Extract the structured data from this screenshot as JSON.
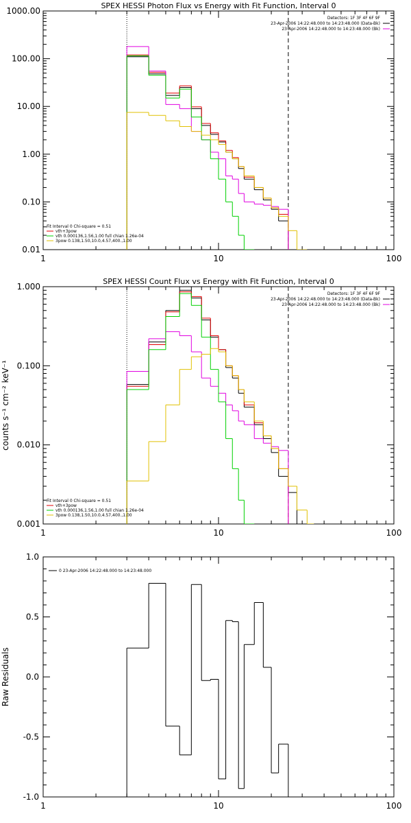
{
  "chart_data": [
    {
      "type": "line",
      "title": "SPEX HESSI Photon Flux vs Energy with Fit Function, Interval 0",
      "ylabel": "",
      "xscale": "log",
      "yscale": "log",
      "xlim": [
        1,
        100
      ],
      "ylim": [
        0.01,
        1000
      ],
      "x_tick_labels": [
        "1",
        "10",
        "100"
      ],
      "y_tick_labels": [
        "0.01",
        "0.10",
        "1.00",
        "10.00",
        "100.00",
        "1000.00"
      ],
      "vlines": [
        {
          "x": 3,
          "style": "dotted"
        },
        {
          "x": 25,
          "style": "dashed"
        }
      ],
      "legend_top_right": [
        "Detectors: 1F 3F 4F 6F 9F",
        "23-Apr-2006 14:22:48.000 to 14:23:48.000 (Data-Bk)",
        "23-Apr-2006 14:22:48.000 to 14:23:48.000 (Bk)"
      ],
      "legend_bottom_left": [
        "Fit Interval 0   Chi-square = 0.51",
        "vth+3pow",
        "vth 0.000136,1.56,1.00   full chian 1.26e-04",
        "3pow 0.138,1.50,10.0,4.57,400.,1.00"
      ],
      "edges": [
        3,
        4,
        5,
        6,
        7,
        8,
        9,
        10,
        11,
        12,
        13,
        14,
        16,
        18,
        20,
        22,
        25,
        28,
        32
      ],
      "series": [
        {
          "name": "Data-Bk",
          "color": "#000000",
          "values": [
            110,
            48,
            17,
            25,
            9,
            4,
            2.6,
            1.8,
            1.1,
            0.8,
            0.5,
            0.3,
            0.18,
            0.11,
            0.07,
            0.04,
            null,
            null
          ]
        },
        {
          "name": "vth+3pow",
          "color": "#e00000",
          "values": [
            120,
            52,
            19,
            27,
            9.8,
            4.4,
            2.8,
            1.9,
            1.2,
            0.85,
            0.55,
            0.33,
            0.2,
            0.12,
            0.075,
            0.055,
            null,
            null
          ]
        },
        {
          "name": "Bk",
          "color": "#e000e0",
          "values": [
            180,
            55,
            11,
            9,
            3,
            2,
            1.1,
            0.8,
            0.35,
            0.3,
            0.15,
            0.1,
            0.09,
            0.085,
            0.08,
            0.07,
            null,
            null
          ]
        },
        {
          "name": "vth",
          "color": "#00d000",
          "values": [
            115,
            45,
            15,
            23,
            6,
            2,
            0.8,
            0.3,
            0.1,
            0.05,
            0.02,
            0.01,
            null,
            null,
            null,
            null,
            null,
            null
          ]
        },
        {
          "name": "3pow",
          "color": "#e0c000",
          "values": [
            7.5,
            6.5,
            5,
            3.8,
            3,
            2.5,
            2,
            1.6,
            1.1,
            0.8,
            0.55,
            0.35,
            0.2,
            0.12,
            0.075,
            0.05,
            0.025,
            0.01
          ]
        }
      ]
    },
    {
      "type": "line",
      "title": "SPEX HESSI Count Flux vs Energy with Fit Function, Interval 0",
      "ylabel": "counts s⁻¹ cm⁻² keV⁻¹",
      "xscale": "log",
      "yscale": "log",
      "xlim": [
        1,
        100
      ],
      "ylim": [
        0.001,
        1
      ],
      "x_tick_labels": [
        "1",
        "10",
        "100"
      ],
      "y_tick_labels": [
        "0.001",
        "0.010",
        "0.100",
        "1.000"
      ],
      "vlines": [
        {
          "x": 3,
          "style": "dotted"
        },
        {
          "x": 25,
          "style": "dashed"
        }
      ],
      "legend_top_right": [
        "Detectors: 1F 3F 4F 6F 9F",
        "23-Apr-2006 14:22:48.000 to 14:23:48.000 (Data-Bk)",
        "23-Apr-2006 14:22:48.000 to 14:23:48.000 (Bk)"
      ],
      "legend_bottom_left": [
        "Fit Interval 0   Chi-square = 0.51",
        "vth+3pow",
        "vth 0.000136,1.56,1.00   full chian 1.26e-04",
        "3pow 0.138,1.50,10.0,4.57,400.,1.00"
      ],
      "edges": [
        3,
        4,
        5,
        6,
        7,
        8,
        9,
        10,
        11,
        12,
        13,
        14,
        16,
        18,
        20,
        22,
        25,
        28,
        32,
        35
      ],
      "series": [
        {
          "name": "Data-Bk",
          "color": "#000000",
          "values": [
            0.058,
            0.2,
            0.5,
            0.9,
            0.72,
            0.38,
            0.23,
            0.16,
            0.095,
            0.07,
            0.045,
            0.03,
            0.018,
            0.012,
            0.008,
            0.004,
            0.0025,
            null,
            null
          ]
        },
        {
          "name": "vth+3pow",
          "color": "#e00000",
          "values": [
            0.055,
            0.185,
            0.48,
            0.86,
            0.75,
            0.4,
            0.24,
            0.16,
            0.1,
            0.075,
            0.05,
            0.032,
            0.019,
            0.013,
            0.009,
            0.005,
            null,
            null,
            null
          ]
        },
        {
          "name": "Bk",
          "color": "#e000e0",
          "values": [
            0.085,
            0.22,
            0.27,
            0.24,
            0.15,
            0.07,
            0.055,
            0.045,
            0.032,
            0.027,
            0.02,
            0.018,
            0.012,
            0.0105,
            0.0095,
            0.0085,
            null,
            null,
            null
          ]
        },
        {
          "name": "vth",
          "color": "#00d000",
          "values": [
            0.05,
            0.16,
            0.42,
            0.82,
            0.58,
            0.23,
            0.09,
            0.035,
            0.012,
            0.005,
            0.002,
            0.001,
            null,
            null,
            null,
            null,
            null,
            null,
            null
          ]
        },
        {
          "name": "3pow",
          "color": "#e0c000",
          "values": [
            0.0035,
            0.011,
            0.032,
            0.09,
            0.13,
            0.14,
            0.165,
            0.15,
            0.1,
            0.075,
            0.05,
            0.035,
            0.02,
            0.013,
            0.009,
            0.005,
            0.003,
            0.0015,
            0.001
          ]
        }
      ]
    },
    {
      "type": "line",
      "title": "",
      "ylabel": "Raw Residuals",
      "xscale": "log",
      "yscale": "linear",
      "xlim": [
        1,
        100
      ],
      "ylim": [
        -1,
        1
      ],
      "x_tick_labels": [
        "1",
        "10",
        "100"
      ],
      "y_tick_labels": [
        "-1.0",
        "-0.5",
        "0.0",
        "0.5",
        "1.0"
      ],
      "y_ticks": [
        -1,
        -0.5,
        0,
        0.5,
        1
      ],
      "legend_top_left": "0  23-Apr-2006 14:22:48.000 to 14:23:48.000",
      "edges": [
        3,
        4,
        5,
        6,
        7,
        8,
        9,
        10,
        11,
        12,
        13,
        14,
        16,
        18,
        20,
        22,
        25
      ],
      "series": [
        {
          "name": "0  23-Apr-2006 14:22:48.000 to 14:23:48.000",
          "color": "#000000",
          "values": [
            0.24,
            0.78,
            -0.41,
            -0.65,
            0.77,
            -0.03,
            -0.02,
            -0.85,
            0.47,
            0.46,
            -0.93,
            0.27,
            0.62,
            0.08,
            -0.8,
            -0.56
          ]
        }
      ]
    }
  ]
}
